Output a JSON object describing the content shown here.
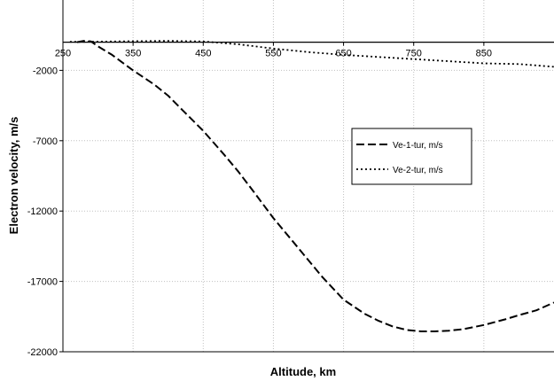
{
  "chart_data": {
    "type": "line",
    "title": "",
    "xlabel": "Altitude, km",
    "ylabel": "Electron velocity, m/s",
    "xlim": [
      250,
      950
    ],
    "ylim": [
      -22000,
      3000
    ],
    "x_ticks": [
      250,
      350,
      450,
      550,
      650,
      750,
      850
    ],
    "y_ticks": [
      -2000,
      -7000,
      -12000,
      -17000,
      -22000
    ],
    "x_tick_labels": [
      "250",
      "350",
      "450",
      "550",
      "650",
      "750",
      "850"
    ],
    "y_tick_labels": [
      "-2000",
      "-7000",
      "-12000",
      "-17000",
      "-22000"
    ],
    "grid": true,
    "legend_position": "right",
    "series": [
      {
        "name": "Ve-1-tur, m/s",
        "line_style": "dashed",
        "color": "#000000",
        "points": [
          [
            270,
            0
          ],
          [
            280,
            100
          ],
          [
            290,
            50
          ],
          [
            300,
            -300
          ],
          [
            320,
            -900
          ],
          [
            350,
            -2000
          ],
          [
            380,
            -3000
          ],
          [
            400,
            -3800
          ],
          [
            420,
            -4800
          ],
          [
            450,
            -6300
          ],
          [
            480,
            -8000
          ],
          [
            500,
            -9200
          ],
          [
            520,
            -10500
          ],
          [
            550,
            -12500
          ],
          [
            580,
            -14300
          ],
          [
            600,
            -15500
          ],
          [
            620,
            -16700
          ],
          [
            650,
            -18300
          ],
          [
            680,
            -19300
          ],
          [
            700,
            -19800
          ],
          [
            720,
            -20200
          ],
          [
            740,
            -20450
          ],
          [
            760,
            -20550
          ],
          [
            780,
            -20550
          ],
          [
            800,
            -20500
          ],
          [
            820,
            -20400
          ],
          [
            850,
            -20100
          ],
          [
            880,
            -19700
          ],
          [
            900,
            -19400
          ],
          [
            925,
            -19050
          ],
          [
            950,
            -18500
          ]
        ]
      },
      {
        "name": "Ve-2-tur, m/s",
        "line_style": "dotted",
        "color": "#000000",
        "points": [
          [
            260,
            30
          ],
          [
            280,
            30
          ],
          [
            300,
            40
          ],
          [
            350,
            70
          ],
          [
            400,
            100
          ],
          [
            450,
            50
          ],
          [
            500,
            -150
          ],
          [
            550,
            -450
          ],
          [
            600,
            -700
          ],
          [
            650,
            -900
          ],
          [
            700,
            -1050
          ],
          [
            750,
            -1200
          ],
          [
            800,
            -1350
          ],
          [
            850,
            -1500
          ],
          [
            900,
            -1550
          ],
          [
            950,
            -1750
          ]
        ]
      }
    ]
  }
}
